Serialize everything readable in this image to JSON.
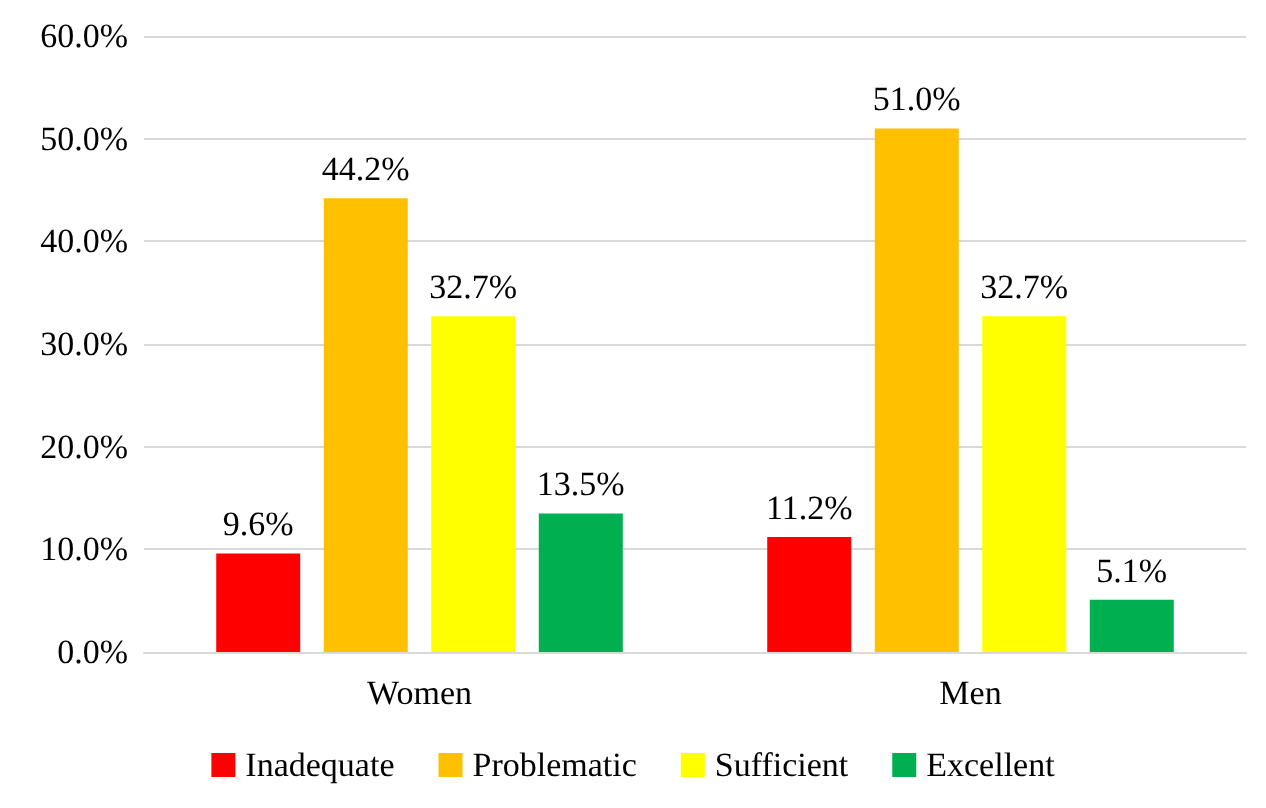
{
  "chart_data": {
    "type": "bar",
    "categories": [
      "Women",
      "Men"
    ],
    "series": [
      {
        "name": "Inadequate",
        "color": "#ff0000",
        "values": [
          9.6,
          11.2
        ],
        "value_labels": [
          "9.6%",
          "11.2%"
        ]
      },
      {
        "name": "Problematic",
        "color": "#ffc000",
        "values": [
          44.2,
          51.0
        ],
        "value_labels": [
          "44.2%",
          "51.0%"
        ]
      },
      {
        "name": "Sufficient",
        "color": "#ffff00",
        "values": [
          32.7,
          32.7
        ],
        "value_labels": [
          "32.7%",
          "32.7%"
        ]
      },
      {
        "name": "Excellent",
        "color": "#00b050",
        "values": [
          13.5,
          5.1
        ],
        "value_labels": [
          "13.5%",
          "5.1%"
        ]
      }
    ],
    "ylim": [
      0,
      60
    ],
    "yticks": [
      {
        "value": 0,
        "label": "0.0%"
      },
      {
        "value": 10,
        "label": "10.0%"
      },
      {
        "value": 20,
        "label": "20.0%"
      },
      {
        "value": 30,
        "label": "30.0%"
      },
      {
        "value": 40,
        "label": "40.0%"
      },
      {
        "value": 50,
        "label": "50.0%"
      },
      {
        "value": 60,
        "label": "60.0%"
      }
    ],
    "grid": "y",
    "legend": "bottom"
  }
}
